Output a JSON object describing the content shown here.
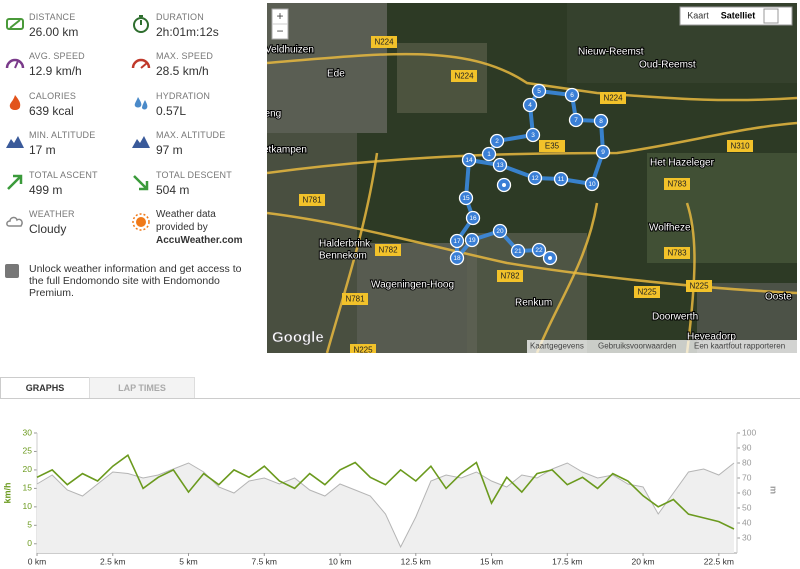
{
  "stats": [
    {
      "label": "DISTANCE",
      "value": "26.00 km"
    },
    {
      "label": "DURATION",
      "value": "2h:01m:12s"
    },
    {
      "label": "AVG. SPEED",
      "value": "12.9 km/h"
    },
    {
      "label": "MAX. SPEED",
      "value": "28.5 km/h"
    },
    {
      "label": "CALORIES",
      "value": "639 kcal"
    },
    {
      "label": "HYDRATION",
      "value": "0.57L"
    },
    {
      "label": "MIN. ALTITUDE",
      "value": "17 m"
    },
    {
      "label": "MAX. ALTITUDE",
      "value": "97 m"
    },
    {
      "label": "TOTAL ASCENT",
      "value": "499 m"
    },
    {
      "label": "TOTAL DESCENT",
      "value": "504 m"
    },
    {
      "label": "WEATHER",
      "value": "Cloudy"
    }
  ],
  "weather_credit": {
    "line1": "Weather data",
    "line2": "provided by",
    "source": "AccuWeather.com"
  },
  "promo": "Unlock weather information and get access to the full Endomondo site with Endomondo Premium.",
  "map": {
    "zoom_in": "+",
    "zoom_out": "−",
    "buttons": [
      "Kaart",
      "Satelliet"
    ],
    "places": [
      "Veldhuizen",
      "Ede",
      "Nieuw-Reemst",
      "Oud-Reemst",
      "Het Hazeleger",
      "Wolfheze",
      "Halderbrink",
      "Bennekom",
      "Wageningen-Hoog",
      "Renkum",
      "Doorwerth",
      "Heveadorp",
      "Ooste",
      "etkampen",
      "neng"
    ],
    "roads": [
      "N224",
      "N224",
      "N224",
      "E35",
      "N310",
      "N783",
      "N783",
      "N781",
      "N781",
      "N782",
      "N782",
      "N225",
      "N225",
      "N225"
    ],
    "markers": [
      1,
      2,
      3,
      4,
      5,
      6,
      7,
      8,
      9,
      10,
      11,
      12,
      13,
      14,
      15,
      16,
      17,
      18,
      19,
      20,
      21,
      22
    ],
    "logo": "Google",
    "footer": [
      "Kaartgegevens",
      "Gebruiksvoorwaarden",
      "Een kaartfout rapporteren"
    ]
  },
  "tabs": [
    "GRAPHS",
    "LAP TIMES"
  ],
  "chart_data": {
    "type": "line",
    "y_label": "km/h",
    "y2_label": "m",
    "x": [
      0,
      0.5,
      1,
      1.5,
      2,
      2.5,
      3,
      3.5,
      4,
      4.5,
      5,
      5.5,
      6,
      6.5,
      7,
      7.5,
      8,
      8.5,
      9,
      9.5,
      10,
      10.5,
      11,
      11.5,
      12,
      12.5,
      13,
      13.5,
      14,
      14.5,
      15,
      15.5,
      16,
      16.5,
      17,
      17.5,
      18,
      18.5,
      19,
      19.5,
      20,
      20.5,
      21,
      21.5,
      22,
      22.5,
      23
    ],
    "series": [
      {
        "color": "#6b9a1e",
        "values": [
          18,
          20,
          16,
          19,
          17,
          21,
          24,
          15,
          18,
          20,
          14,
          19,
          16,
          20,
          18,
          21,
          17,
          15,
          19,
          16,
          20,
          22,
          18,
          16,
          20,
          17,
          21,
          15,
          19,
          22,
          11,
          18,
          14,
          19,
          20,
          16,
          18,
          15,
          19,
          17,
          13,
          10,
          12,
          8,
          7,
          6,
          4
        ]
      },
      {
        "color": "#b5b5b5",
        "fill": "#efefef",
        "axis": "y2",
        "values": [
          66,
          72,
          62,
          58,
          66,
          74,
          73,
          70,
          72,
          76,
          80,
          74,
          64,
          60,
          68,
          70,
          66,
          70,
          62,
          58,
          66,
          62,
          58,
          46,
          24,
          44,
          68,
          72,
          70,
          74,
          68,
          64,
          72,
          70,
          76,
          80,
          74,
          70,
          72,
          66,
          64,
          46,
          60,
          74,
          76,
          72,
          80
        ]
      }
    ],
    "xlim": [
      0,
      23.1
    ],
    "ylim": [
      -2.5,
      30
    ],
    "y2lim": [
      20,
      100
    ],
    "xticks": [
      {
        "value": 0,
        "label": "0 km"
      },
      {
        "value": 2.5,
        "label": "2.5 km"
      },
      {
        "value": 5,
        "label": "5 km"
      },
      {
        "value": 7.5,
        "label": "7.5 km"
      },
      {
        "value": 10,
        "label": "10 km"
      },
      {
        "value": 12.5,
        "label": "12.5 km"
      },
      {
        "value": 15,
        "label": "15 km"
      },
      {
        "value": 17.5,
        "label": "17.5 km"
      },
      {
        "value": 20,
        "label": "20 km"
      },
      {
        "value": 22.5,
        "label": "22.5 km"
      }
    ],
    "yticks": [
      0,
      5,
      10,
      15,
      20,
      25,
      30
    ],
    "y2ticks": [
      30,
      40,
      50,
      60,
      70,
      80,
      90,
      100
    ],
    "grid": false
  }
}
